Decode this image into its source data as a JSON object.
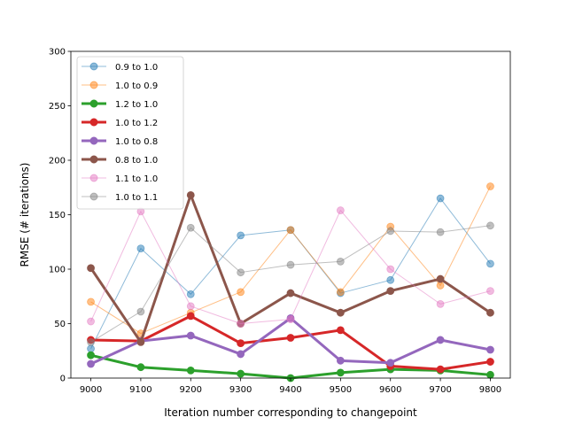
{
  "chart_data": {
    "type": "line",
    "xlabel": "Iteration number corresponding to changepoint",
    "ylabel": "RMSE (# iterations)",
    "x": [
      9000,
      9100,
      9200,
      9300,
      9400,
      9500,
      9600,
      9700,
      9800
    ],
    "x_ticks": [
      "9000",
      "9100",
      "9200",
      "9300",
      "9400",
      "9500",
      "9600",
      "9700",
      "9800"
    ],
    "xlim": [
      8960,
      9840
    ],
    "ylim": [
      0,
      300
    ],
    "y_ticks": [
      0,
      50,
      100,
      150,
      200,
      250,
      300
    ],
    "legend_position": "top-left",
    "grid": false,
    "series": [
      {
        "name": "0.9 to 1.0",
        "color": "#1f77b4",
        "emphasis": "light",
        "values": [
          27,
          119,
          77,
          131,
          136,
          78,
          90,
          165,
          105
        ]
      },
      {
        "name": "1.0 to 0.9",
        "color": "#ff7f0e",
        "emphasis": "light",
        "values": [
          70,
          41,
          60,
          79,
          136,
          79,
          139,
          85,
          176
        ]
      },
      {
        "name": "1.2 to 1.0",
        "color": "#2ca02c",
        "emphasis": "bold",
        "values": [
          21,
          10,
          7,
          4,
          0,
          5,
          8,
          7,
          3
        ]
      },
      {
        "name": "1.0 to 1.2",
        "color": "#d62728",
        "emphasis": "bold",
        "values": [
          35,
          34,
          57,
          32,
          37,
          44,
          11,
          8,
          15
        ]
      },
      {
        "name": "1.0 to 0.8",
        "color": "#9467bd",
        "emphasis": "bold",
        "values": [
          13,
          34,
          39,
          22,
          55,
          16,
          14,
          35,
          26
        ]
      },
      {
        "name": "0.8 to 1.0",
        "color": "#8c564b",
        "emphasis": "bold",
        "values": [
          101,
          33,
          168,
          50,
          78,
          60,
          80,
          91,
          60
        ]
      },
      {
        "name": "1.1 to 1.0",
        "color": "#e377c2",
        "emphasis": "light",
        "values": [
          52,
          153,
          66,
          50,
          54,
          154,
          100,
          68,
          80
        ]
      },
      {
        "name": "1.0 to 1.1",
        "color": "#7f7f7f",
        "emphasis": "light",
        "values": [
          33,
          61,
          138,
          97,
          104,
          107,
          135,
          134,
          140
        ]
      }
    ]
  }
}
